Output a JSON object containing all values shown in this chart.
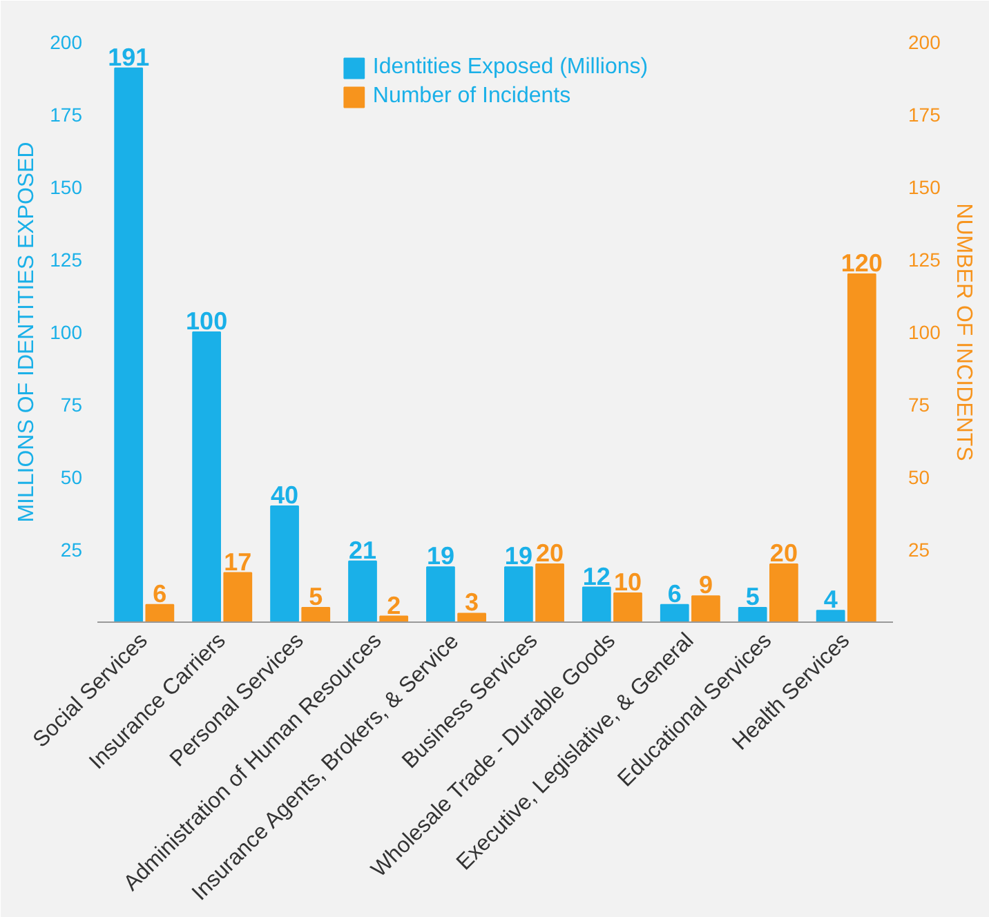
{
  "chart_data": {
    "type": "bar",
    "ylabel": "MILLIONS OF IDENTITIES EXPOSED",
    "y2label": "NUMBER OF INCIDENTS",
    "categories": [
      "Social Services",
      "Insurance Carriers",
      "Personal Services",
      "Administration of Human Resources",
      "Insurance Agents, Brokers, & Service",
      "Business Services",
      "Wholesale Trade - Durable Goods",
      "Executive, Legislative, & General",
      "Educational Services",
      "Health Services"
    ],
    "series": [
      {
        "name": "Identities Exposed (Millions)",
        "color": "#1ab0e8",
        "values": [
          191,
          100,
          40,
          21,
          19,
          19,
          12,
          6,
          5,
          4
        ]
      },
      {
        "name": "Number of Incidents",
        "color": "#f7941d",
        "axis": "y2",
        "values": [
          6,
          17,
          5,
          2,
          3,
          20,
          10,
          9,
          20,
          120
        ]
      }
    ],
    "ylim": [
      0,
      200
    ],
    "yticks": [
      25,
      50,
      75,
      100,
      125,
      150,
      175,
      200
    ],
    "y2lim": [
      0,
      200
    ],
    "y2ticks": [
      25,
      50,
      75,
      100,
      125,
      150,
      175,
      200
    ],
    "data_labels": true,
    "grid": false,
    "legend": "top"
  }
}
